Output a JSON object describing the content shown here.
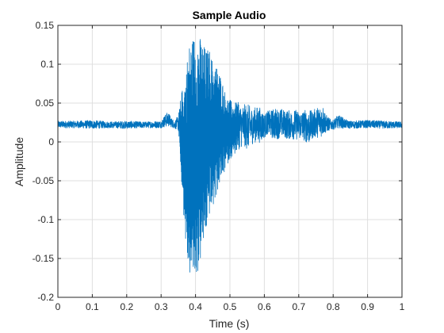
{
  "chart_data": {
    "type": "line",
    "title": "Sample Audio",
    "xlabel": "Time (s)",
    "ylabel": "Amplitude",
    "xlim": [
      0,
      1
    ],
    "ylim": [
      -0.2,
      0.15
    ],
    "xticks": [
      0,
      0.1,
      0.2,
      0.3,
      0.4,
      0.5,
      0.6,
      0.7,
      0.8,
      0.9,
      1
    ],
    "xtick_labels": [
      "0",
      "0.1",
      "0.2",
      "0.3",
      "0.4",
      "0.5",
      "0.6",
      "0.7",
      "0.8",
      "0.9",
      "1"
    ],
    "yticks": [
      -0.2,
      -0.15,
      -0.1,
      -0.05,
      0,
      0.05,
      0.1,
      0.15
    ],
    "ytick_labels": [
      "-0.2",
      "-0.15",
      "-0.1",
      "-0.05",
      "0",
      "0.05",
      "0.1",
      "0.15"
    ],
    "grid": true,
    "line_color": "#0072BD",
    "axis_color": "#262626",
    "grid_color": "#dfdfdf",
    "series": [
      {
        "envelope_upper": {
          "x": [
            0,
            0.05,
            0.1,
            0.15,
            0.2,
            0.25,
            0.3,
            0.31,
            0.32,
            0.33,
            0.34,
            0.35,
            0.36,
            0.37,
            0.38,
            0.39,
            0.4,
            0.41,
            0.42,
            0.43,
            0.44,
            0.45,
            0.46,
            0.47,
            0.48,
            0.49,
            0.5,
            0.51,
            0.52,
            0.53,
            0.54,
            0.55,
            0.56,
            0.57,
            0.58,
            0.59,
            0.6,
            0.61,
            0.62,
            0.63,
            0.64,
            0.65,
            0.66,
            0.67,
            0.68,
            0.69,
            0.7,
            0.71,
            0.72,
            0.73,
            0.74,
            0.75,
            0.76,
            0.77,
            0.78,
            0.79,
            0.8,
            0.81,
            0.82,
            0.83,
            0.84,
            0.85,
            0.9,
            0.95,
            1
          ],
          "y": [
            0.027,
            0.027,
            0.028,
            0.026,
            0.027,
            0.026,
            0.027,
            0.034,
            0.039,
            0.031,
            0.027,
            0.035,
            0.065,
            0.085,
            0.125,
            0.135,
            0.14,
            0.138,
            0.13,
            0.12,
            0.12,
            0.105,
            0.1,
            0.09,
            0.075,
            0.058,
            0.055,
            0.048,
            0.052,
            0.049,
            0.048,
            0.05,
            0.045,
            0.044,
            0.046,
            0.044,
            0.036,
            0.04,
            0.041,
            0.044,
            0.042,
            0.043,
            0.04,
            0.041,
            0.04,
            0.042,
            0.04,
            0.04,
            0.042,
            0.041,
            0.04,
            0.044,
            0.046,
            0.048,
            0.035,
            0.03,
            0.028,
            0.033,
            0.034,
            0.031,
            0.028,
            0.027,
            0.028,
            0.027,
            0.026
          ]
        },
        "envelope_lower": {
          "x": [
            0,
            0.05,
            0.1,
            0.15,
            0.2,
            0.25,
            0.3,
            0.31,
            0.32,
            0.33,
            0.34,
            0.35,
            0.36,
            0.37,
            0.38,
            0.39,
            0.4,
            0.41,
            0.42,
            0.43,
            0.44,
            0.45,
            0.46,
            0.47,
            0.48,
            0.49,
            0.5,
            0.51,
            0.52,
            0.53,
            0.54,
            0.55,
            0.56,
            0.57,
            0.58,
            0.59,
            0.6,
            0.61,
            0.62,
            0.63,
            0.64,
            0.65,
            0.66,
            0.67,
            0.68,
            0.69,
            0.7,
            0.71,
            0.72,
            0.73,
            0.74,
            0.75,
            0.76,
            0.77,
            0.78,
            0.79,
            0.8,
            0.81,
            0.82,
            0.83,
            0.84,
            0.85,
            0.9,
            0.95,
            1
          ],
          "y": [
            0.018,
            0.018,
            0.017,
            0.018,
            0.017,
            0.018,
            0.018,
            0.019,
            0.02,
            0.019,
            0.017,
            0.015,
            -0.055,
            -0.125,
            -0.172,
            -0.175,
            -0.178,
            -0.165,
            -0.14,
            -0.12,
            -0.095,
            -0.088,
            -0.07,
            -0.055,
            -0.045,
            -0.032,
            -0.022,
            -0.018,
            -0.012,
            -0.008,
            -0.005,
            -0.01,
            -0.006,
            0.0,
            -0.002,
            0.0,
            0.005,
            0.01,
            0.005,
            0.003,
            0.004,
            0.006,
            0.005,
            0.003,
            0.004,
            0.002,
            0.004,
            0.003,
            0.0,
            -0.003,
            0.004,
            0.006,
            0.005,
            0.008,
            0.012,
            0.015,
            0.016,
            0.017,
            0.018,
            0.017,
            0.018,
            0.017,
            0.018,
            0.017,
            0.018
          ]
        },
        "baseline": 0.023
      }
    ]
  }
}
